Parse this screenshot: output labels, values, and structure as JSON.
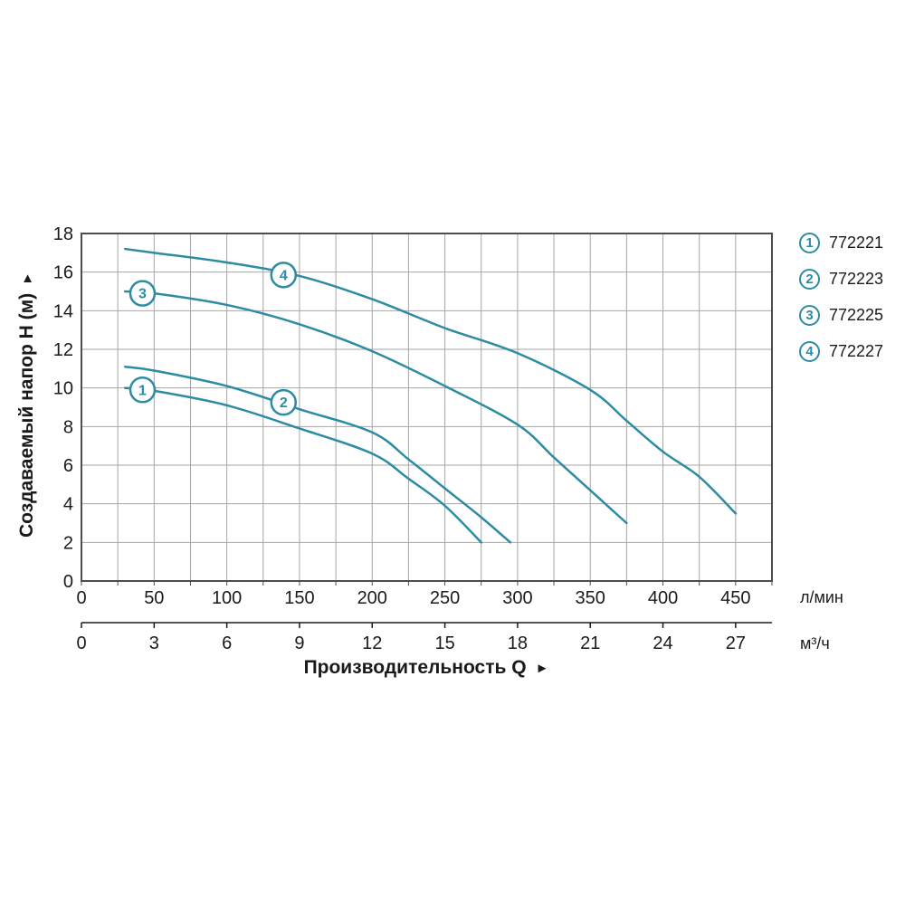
{
  "chart_data": {
    "type": "line",
    "title": "",
    "xlabel": "Производительность Q",
    "xlabel_arrow": "►",
    "ylabel": "Создаваемый напор H (м)",
    "ylabel_arrow": "▲",
    "x_unit_primary": "л/мин",
    "x_unit_secondary": "м³/ч",
    "xlim": [
      0,
      475
    ],
    "ylim": [
      0,
      18
    ],
    "x_ticks_lmin": [
      0,
      50,
      100,
      150,
      200,
      250,
      300,
      350,
      400,
      450
    ],
    "x_minor_step_lmin": 25,
    "x_ticks_m3h": [
      0,
      3,
      6,
      9,
      12,
      15,
      18,
      21,
      24,
      27
    ],
    "lmin_per_m3h": 16.6667,
    "y_ticks": [
      0,
      2,
      4,
      6,
      8,
      10,
      12,
      14,
      16,
      18
    ],
    "grid": true,
    "legend_position": "top-right",
    "colors": {
      "curve": "#2d8ca3",
      "grid": "#a6a6a6",
      "frame": "#4d4d4d",
      "text": "#1a1a1a",
      "background": "#ffffff"
    },
    "series": [
      {
        "id": "1",
        "model": "772221",
        "marker": [
          42,
          9.9
        ],
        "points": [
          [
            30,
            10.0
          ],
          [
            50,
            9.85
          ],
          [
            100,
            9.1
          ],
          [
            150,
            7.9
          ],
          [
            200,
            6.6
          ],
          [
            225,
            5.3
          ],
          [
            250,
            3.9
          ],
          [
            275,
            2.0
          ]
        ]
      },
      {
        "id": "2",
        "model": "772223",
        "marker": [
          139,
          9.25
        ],
        "points": [
          [
            30,
            11.1
          ],
          [
            50,
            10.9
          ],
          [
            100,
            10.1
          ],
          [
            150,
            8.9
          ],
          [
            200,
            7.7
          ],
          [
            225,
            6.3
          ],
          [
            250,
            4.8
          ],
          [
            275,
            3.3
          ],
          [
            295,
            2.0
          ]
        ]
      },
      {
        "id": "3",
        "model": "772225",
        "marker": [
          42,
          14.9
        ],
        "points": [
          [
            30,
            15.0
          ],
          [
            50,
            14.9
          ],
          [
            100,
            14.3
          ],
          [
            150,
            13.3
          ],
          [
            200,
            11.9
          ],
          [
            250,
            10.1
          ],
          [
            300,
            8.1
          ],
          [
            325,
            6.4
          ],
          [
            350,
            4.7
          ],
          [
            375,
            3.0
          ]
        ]
      },
      {
        "id": "4",
        "model": "772227",
        "marker": [
          139,
          15.85
        ],
        "points": [
          [
            30,
            17.2
          ],
          [
            50,
            17.0
          ],
          [
            100,
            16.5
          ],
          [
            150,
            15.8
          ],
          [
            200,
            14.6
          ],
          [
            250,
            13.1
          ],
          [
            300,
            11.8
          ],
          [
            350,
            9.9
          ],
          [
            375,
            8.3
          ],
          [
            400,
            6.7
          ],
          [
            425,
            5.4
          ],
          [
            450,
            3.5
          ]
        ]
      }
    ]
  }
}
